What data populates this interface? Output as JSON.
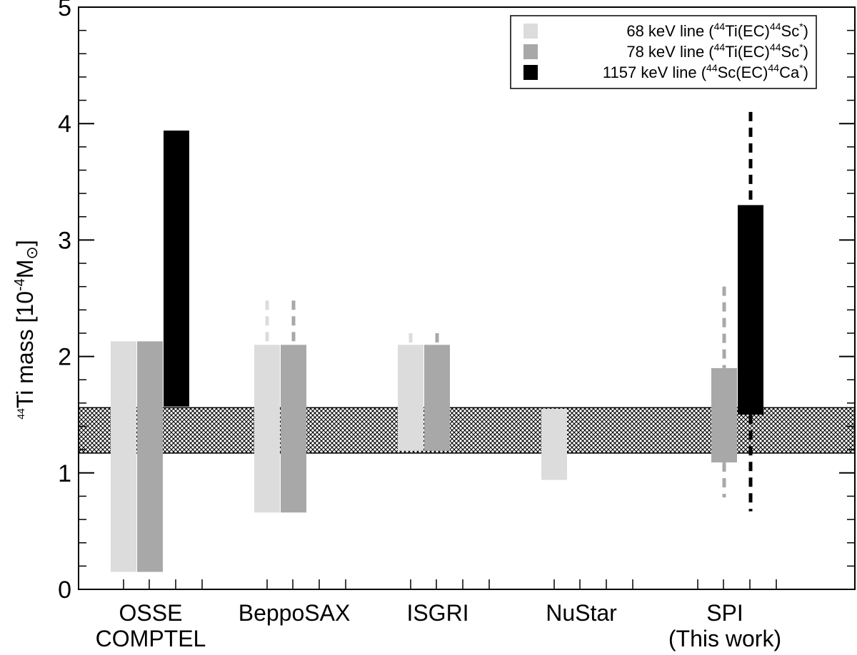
{
  "chart_data": {
    "type": "bar",
    "ylabel": {
      "pre": "44",
      "main": "Ti mass [10",
      "exp": "-4",
      "unit": "M",
      "sun": "⊙",
      "close": "]"
    },
    "ylim": [
      0,
      5
    ],
    "yticks": [
      0,
      1,
      2,
      3,
      4,
      5
    ],
    "categories": [
      {
        "lines": [
          "OSSE",
          "COMPTEL"
        ]
      },
      {
        "lines": [
          "BeppoSAX"
        ]
      },
      {
        "lines": [
          "ISGRI"
        ]
      },
      {
        "lines": [
          "NuStar"
        ]
      },
      {
        "lines": [
          "SPI",
          "(This work)"
        ]
      }
    ],
    "series": [
      {
        "key": "68",
        "color": "#dcdcdc",
        "legend": {
          "a": "68 keV line (",
          "s1": "44",
          "b": "Ti(EC)",
          "s2": "44",
          "c": "Sc",
          "s3": "*",
          "d": ")"
        }
      },
      {
        "key": "78",
        "color": "#a8a8a8",
        "legend": {
          "a": "78 keV line (",
          "s1": "44",
          "b": "Ti(EC)",
          "s2": "44",
          "c": "Sc",
          "s3": "*",
          "d": ")"
        }
      },
      {
        "key": "1157",
        "color": "#000000",
        "legend": {
          "a": "1157 keV line (",
          "s1": "44",
          "b": "Sc(EC)",
          "s2": "44",
          "c": "Ca",
          "s3": "*",
          "d": ")"
        }
      }
    ],
    "bars": [
      {
        "category": 0,
        "series": 0,
        "low": 0.15,
        "high": 2.13
      },
      {
        "category": 0,
        "series": 1,
        "low": 0.15,
        "high": 2.13
      },
      {
        "category": 0,
        "series": 2,
        "low": 1.57,
        "high": 3.94
      },
      {
        "category": 1,
        "series": 0,
        "low": 0.66,
        "high": 2.1,
        "dash_high": 2.48
      },
      {
        "category": 1,
        "series": 1,
        "low": 0.66,
        "high": 2.1,
        "dash_high": 2.48
      },
      {
        "category": 2,
        "series": 0,
        "low": 1.19,
        "high": 2.1,
        "dash_high": 2.2
      },
      {
        "category": 2,
        "series": 1,
        "low": 1.19,
        "high": 2.1,
        "dash_high": 2.2
      },
      {
        "category": 3,
        "series": 0,
        "low": 0.94,
        "high": 1.55
      },
      {
        "category": 4,
        "series": 1,
        "low": 1.09,
        "high": 1.9,
        "dash_low": 0.79,
        "dash_high": 2.6
      },
      {
        "category": 4,
        "series": 2,
        "low": 1.5,
        "high": 3.3,
        "dash_low": 0.67,
        "dash_high": 4.1
      }
    ],
    "band": {
      "low": 1.17,
      "high": 1.56
    },
    "legend_position": "top-right"
  }
}
